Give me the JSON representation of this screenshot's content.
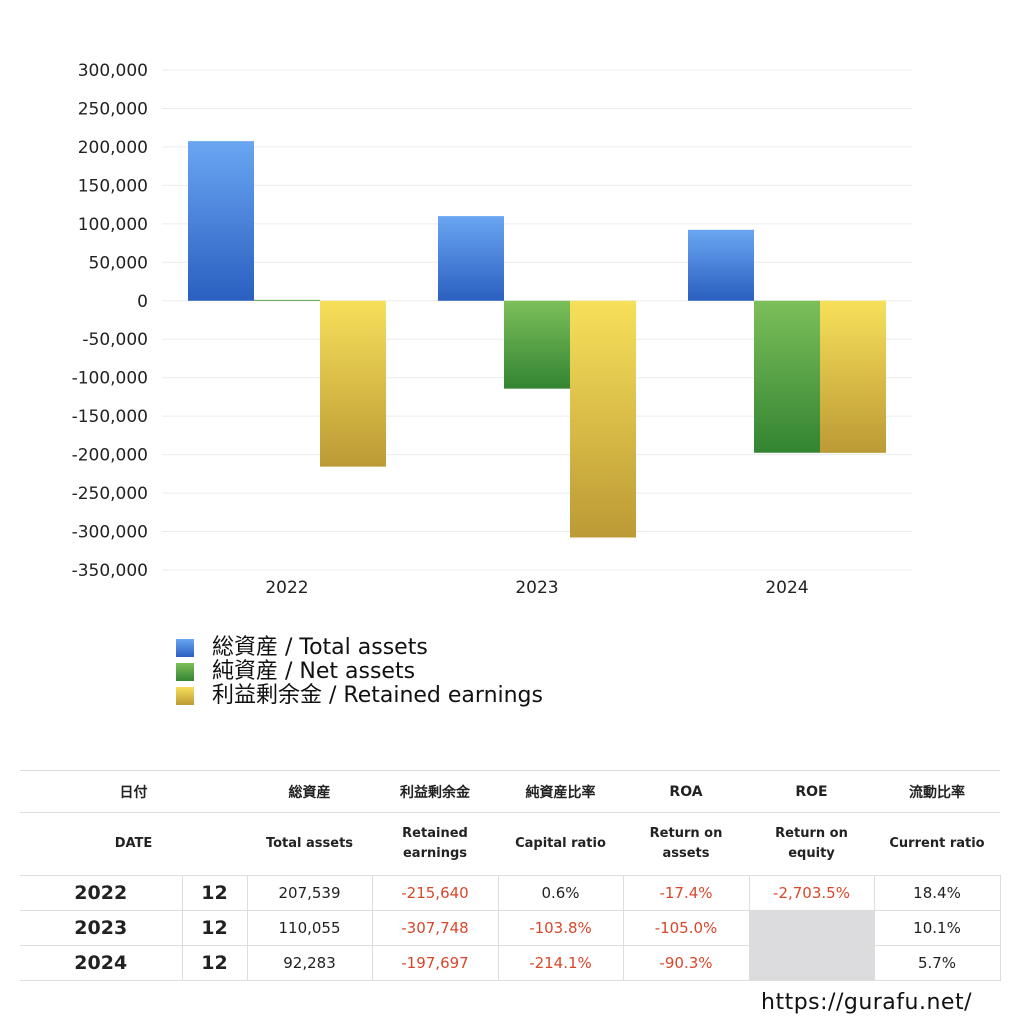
{
  "chart_data": {
    "type": "bar",
    "title": "",
    "categories": [
      "2022",
      "2023",
      "2024"
    ],
    "series": [
      {
        "name": "総資産 / Total assets",
        "values": [
          207539,
          110055,
          92283
        ],
        "color": "#3a78d6"
      },
      {
        "name": "純資産 / Net assets",
        "values": [
          1245,
          -114230,
          -197583
        ],
        "color": "#4a9c3e"
      },
      {
        "name": "利益剰余金 / Retained earnings",
        "values": [
          -215640,
          -307748,
          -197697
        ],
        "color": "#e0c540"
      }
    ],
    "ylim": [
      -350000,
      300000
    ],
    "yticks": [
      300000,
      250000,
      200000,
      150000,
      100000,
      50000,
      0,
      -50000,
      -100000,
      -150000,
      -200000,
      -250000,
      -300000,
      -350000
    ],
    "ytick_labels": [
      "300,000",
      "250,000",
      "200,000",
      "150,000",
      "100,000",
      "50,000",
      "0",
      "-50,000",
      "-100,000",
      "-150,000",
      "-200,000",
      "-250,000",
      "-300,000",
      "-350,000"
    ],
    "grid": true,
    "legend": "bottom-left"
  },
  "table": {
    "header_jp": [
      "日付",
      "総資産",
      "利益剰余金",
      "純資産比率",
      "ROA",
      "ROE",
      "流動比率"
    ],
    "header_en": [
      "DATE",
      "Total assets",
      "Retained earnings",
      "Capital ratio",
      "Return on assets",
      "Return on equity",
      "Current ratio"
    ],
    "rows": [
      {
        "year": "2022",
        "month": "12",
        "total_assets": "207,539",
        "retained": "-215,640",
        "capital_ratio": "0.6%",
        "roa": "-17.4%",
        "roe": "-2,703.5%",
        "current_ratio": "18.4%"
      },
      {
        "year": "2023",
        "month": "12",
        "total_assets": "110,055",
        "retained": "-307,748",
        "capital_ratio": "-103.8%",
        "roa": "-105.0%",
        "roe": "",
        "current_ratio": "10.1%"
      },
      {
        "year": "2024",
        "month": "12",
        "total_assets": "92,283",
        "retained": "-197,697",
        "capital_ratio": "-214.1%",
        "roa": "-90.3%",
        "roe": "",
        "current_ratio": "5.7%"
      }
    ]
  },
  "footer": {
    "url": "https://gurafu.net/"
  }
}
